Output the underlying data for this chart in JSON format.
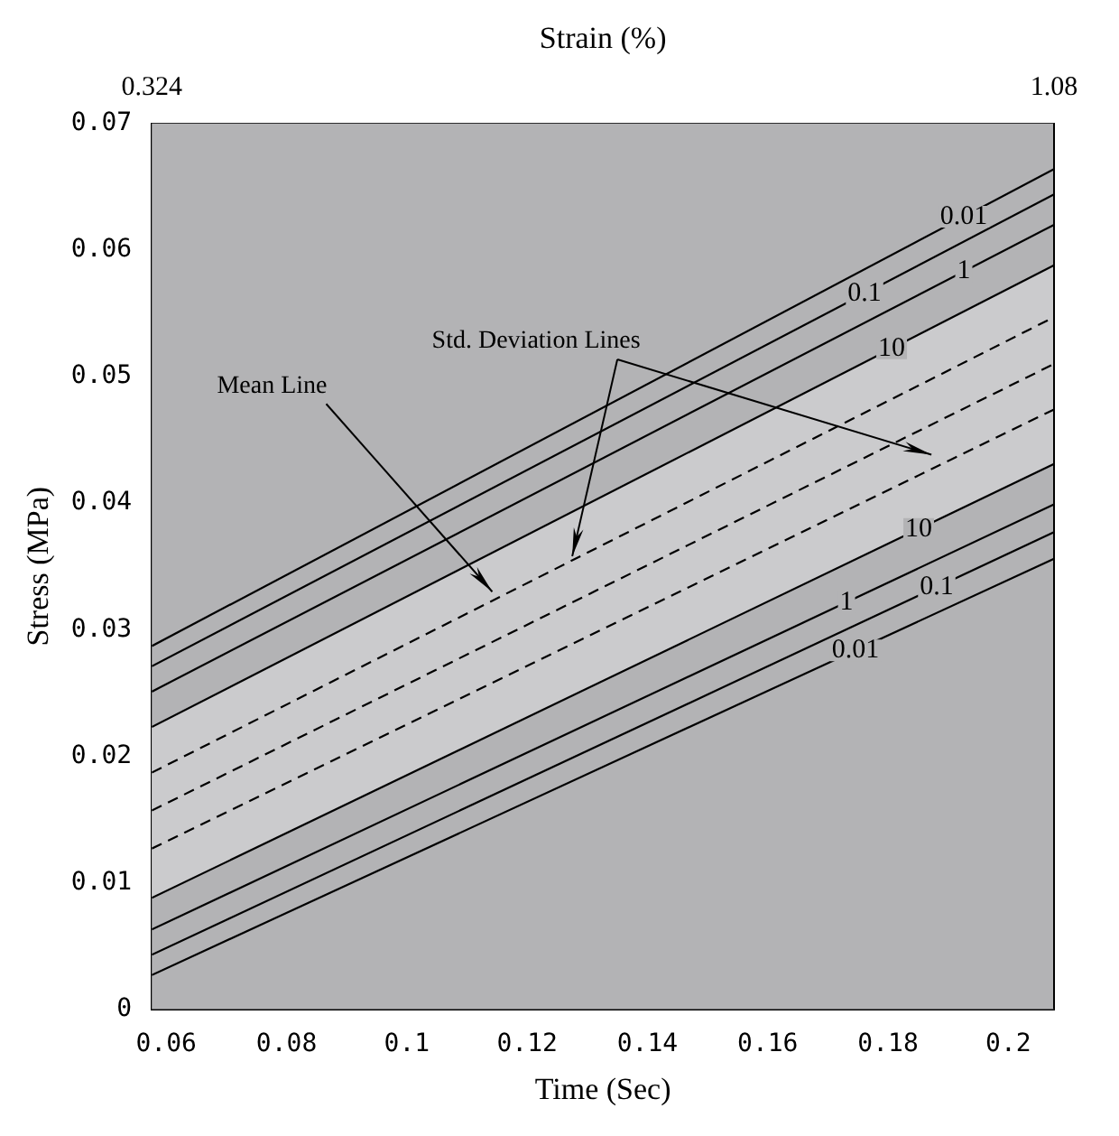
{
  "chart_data": {
    "type": "line",
    "xlabel": "Time (Sec)",
    "ylabel": "Stress (MPa)",
    "x2label": "Strain (%)",
    "x": [
      0.0576,
      0.2076
    ],
    "series": [
      {
        "name": "0.01",
        "color": "#000000",
        "values": [
          0.0287,
          0.0664
        ]
      },
      {
        "name": "0.1",
        "color": "#000000",
        "values": [
          0.0271,
          0.0644
        ]
      },
      {
        "name": "1",
        "color": "#000000",
        "values": [
          0.0251,
          0.062
        ]
      },
      {
        "name": "10",
        "color": "#000000",
        "values": [
          0.0223,
          0.0588
        ]
      },
      {
        "color": "#000000",
        "line_style": "dashed",
        "values": [
          0.0187,
          0.0547
        ]
      },
      {
        "color": "#000000",
        "line_style": "dashed",
        "values": [
          0.0157,
          0.051
        ],
        "lower": [
          0.0088,
          0.0431
        ],
        "upper": [
          0.0223,
          0.0588
        ]
      },
      {
        "color": "#000000",
        "line_style": "dashed",
        "values": [
          0.0127,
          0.0474
        ]
      },
      {
        "name": "10",
        "color": "#000000",
        "values": [
          0.0088,
          0.0431
        ]
      },
      {
        "name": "1",
        "color": "#000000",
        "values": [
          0.0063,
          0.0399
        ]
      },
      {
        "name": "0.1",
        "color": "#000000",
        "values": [
          0.0043,
          0.0377
        ]
      },
      {
        "name": "0.01",
        "color": "#000000",
        "values": [
          0.0027,
          0.0356
        ]
      }
    ],
    "xlim": [
      0.0576,
      0.2076
    ],
    "xticks": [
      0.06,
      0.08,
      0.1,
      0.12,
      0.14,
      0.16,
      0.18,
      0.2
    ],
    "ylim": [
      0,
      0.07
    ],
    "yticks": [
      0,
      0.01,
      0.02,
      0.03,
      0.04,
      0.05,
      0.06,
      0.07
    ],
    "x2lim": [
      0.324,
      1.08
    ],
    "x2ticks": [
      0.324,
      1.08
    ],
    "annotations": [
      {
        "text": "Mean Line",
        "x": 0.1142,
        "y": 0.033
      },
      {
        "text": "Std. Deviation Lines",
        "x": 0.1275,
        "y": 0.0358
      }
    ],
    "grid": false,
    "legend": false,
    "marker": "none",
    "line_style": "solid"
  }
}
